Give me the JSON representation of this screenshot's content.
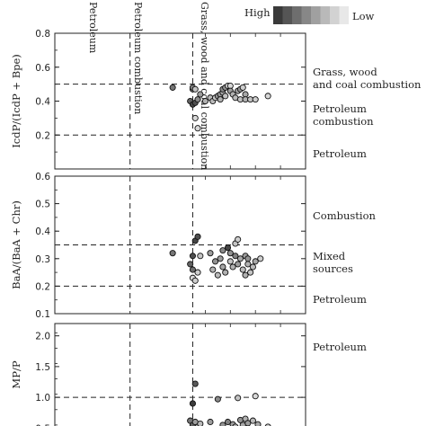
{
  "chart_data": [
    {
      "type": "scatter",
      "ylabel": "IcdP/(IcdP + Bpe)",
      "ylim": [
        0.0,
        0.8
      ],
      "yticks": [
        "0.2",
        "0.4",
        "0.6",
        "0.8"
      ],
      "thresholds": [
        0.2,
        0.5
      ],
      "zones": [
        "Grass, wood and coal combustion",
        "Petroleum combustion",
        "Petroleum"
      ],
      "points": [
        {
          "x": 0.55,
          "y": 0.47,
          "shade": 0.45
        },
        {
          "x": 0.55,
          "y": 0.48,
          "shade": 0.45
        },
        {
          "x": 0.54,
          "y": 0.4,
          "shade": 0.3
        },
        {
          "x": 0.55,
          "y": 0.38,
          "shade": 0.15
        },
        {
          "x": 0.56,
          "y": 0.39,
          "shade": 0.2
        },
        {
          "x": 0.56,
          "y": 0.47,
          "shade": 0.8
        },
        {
          "x": 0.57,
          "y": 0.41,
          "shade": 0.5
        },
        {
          "x": 0.56,
          "y": 0.3,
          "shade": 0.9
        },
        {
          "x": 0.57,
          "y": 0.24,
          "shade": 0.9
        },
        {
          "x": 0.47,
          "y": 0.48,
          "shade": 0.4
        },
        {
          "x": 0.58,
          "y": 0.44,
          "shade": 0.6
        },
        {
          "x": 0.6,
          "y": 0.4,
          "shade": 0.7
        },
        {
          "x": 0.62,
          "y": 0.42,
          "shade": 0.75
        },
        {
          "x": 0.63,
          "y": 0.4,
          "shade": 0.75
        },
        {
          "x": 0.64,
          "y": 0.42,
          "shade": 0.8
        },
        {
          "x": 0.65,
          "y": 0.43,
          "shade": 0.55
        },
        {
          "x": 0.66,
          "y": 0.44,
          "shade": 0.6
        },
        {
          "x": 0.66,
          "y": 0.41,
          "shade": 0.7
        },
        {
          "x": 0.67,
          "y": 0.45,
          "shade": 0.65
        },
        {
          "x": 0.67,
          "y": 0.47,
          "shade": 0.5
        },
        {
          "x": 0.68,
          "y": 0.48,
          "shade": 0.55
        },
        {
          "x": 0.68,
          "y": 0.43,
          "shade": 0.8
        },
        {
          "x": 0.69,
          "y": 0.49,
          "shade": 0.85
        },
        {
          "x": 0.7,
          "y": 0.49,
          "shade": 0.9
        },
        {
          "x": 0.7,
          "y": 0.46,
          "shade": 0.6
        },
        {
          "x": 0.71,
          "y": 0.44,
          "shade": 0.7
        },
        {
          "x": 0.72,
          "y": 0.42,
          "shade": 0.75
        },
        {
          "x": 0.73,
          "y": 0.46,
          "shade": 0.6
        },
        {
          "x": 0.74,
          "y": 0.47,
          "shade": 0.55
        },
        {
          "x": 0.74,
          "y": 0.41,
          "shade": 0.8
        },
        {
          "x": 0.75,
          "y": 0.48,
          "shade": 0.85
        },
        {
          "x": 0.76,
          "y": 0.44,
          "shade": 0.65
        },
        {
          "x": 0.76,
          "y": 0.41,
          "shade": 0.7
        },
        {
          "x": 0.78,
          "y": 0.41,
          "shade": 0.8
        },
        {
          "x": 0.8,
          "y": 0.41,
          "shade": 0.85
        },
        {
          "x": 0.85,
          "y": 0.43,
          "shade": 0.9
        }
      ]
    },
    {
      "type": "scatter",
      "ylabel": "BaA/(BaA + Chr)",
      "ylim": [
        0.1,
        0.6
      ],
      "yticks": [
        "0.1",
        "0.2",
        "0.3",
        "0.4",
        "0.5",
        "0.6"
      ],
      "thresholds": [
        0.2,
        0.35
      ],
      "zones": [
        "Combustion",
        "Mixed sources",
        "Petroleum"
      ],
      "points": [
        {
          "x": 0.47,
          "y": 0.32,
          "shade": 0.4
        },
        {
          "x": 0.54,
          "y": 0.28,
          "shade": 0.3
        },
        {
          "x": 0.55,
          "y": 0.26,
          "shade": 0.35
        },
        {
          "x": 0.55,
          "y": 0.31,
          "shade": 0.2
        },
        {
          "x": 0.56,
          "y": 0.365,
          "shade": 0.15
        },
        {
          "x": 0.57,
          "y": 0.38,
          "shade": 0.2
        },
        {
          "x": 0.55,
          "y": 0.23,
          "shade": 0.9
        },
        {
          "x": 0.56,
          "y": 0.22,
          "shade": 0.85
        },
        {
          "x": 0.57,
          "y": 0.25,
          "shade": 0.85
        },
        {
          "x": 0.58,
          "y": 0.31,
          "shade": 0.8
        },
        {
          "x": 0.62,
          "y": 0.32,
          "shade": 0.6
        },
        {
          "x": 0.63,
          "y": 0.26,
          "shade": 0.7
        },
        {
          "x": 0.64,
          "y": 0.29,
          "shade": 0.55
        },
        {
          "x": 0.65,
          "y": 0.24,
          "shade": 0.75
        },
        {
          "x": 0.66,
          "y": 0.3,
          "shade": 0.6
        },
        {
          "x": 0.67,
          "y": 0.27,
          "shade": 0.65
        },
        {
          "x": 0.67,
          "y": 0.33,
          "shade": 0.5
        },
        {
          "x": 0.68,
          "y": 0.25,
          "shade": 0.7
        },
        {
          "x": 0.69,
          "y": 0.34,
          "shade": 0.15
        },
        {
          "x": 0.7,
          "y": 0.29,
          "shade": 0.8
        },
        {
          "x": 0.7,
          "y": 0.32,
          "shade": 0.55
        },
        {
          "x": 0.71,
          "y": 0.27,
          "shade": 0.7
        },
        {
          "x": 0.72,
          "y": 0.31,
          "shade": 0.45
        },
        {
          "x": 0.72,
          "y": 0.355,
          "shade": 0.8
        },
        {
          "x": 0.73,
          "y": 0.28,
          "shade": 0.6
        },
        {
          "x": 0.73,
          "y": 0.37,
          "shade": 0.85
        },
        {
          "x": 0.74,
          "y": 0.3,
          "shade": 0.65
        },
        {
          "x": 0.75,
          "y": 0.26,
          "shade": 0.75
        },
        {
          "x": 0.76,
          "y": 0.31,
          "shade": 0.6
        },
        {
          "x": 0.76,
          "y": 0.24,
          "shade": 0.7
        },
        {
          "x": 0.77,
          "y": 0.3,
          "shade": 0.55
        },
        {
          "x": 0.77,
          "y": 0.28,
          "shade": 0.7
        },
        {
          "x": 0.78,
          "y": 0.25,
          "shade": 0.8
        },
        {
          "x": 0.79,
          "y": 0.27,
          "shade": 0.75
        },
        {
          "x": 0.8,
          "y": 0.29,
          "shade": 0.65
        },
        {
          "x": 0.82,
          "y": 0.3,
          "shade": 0.85
        }
      ]
    },
    {
      "type": "scatter",
      "ylabel": "MP/P",
      "ylim": [
        0.3,
        2.2
      ],
      "yticks": [
        "0.5",
        "1.0",
        "1.5",
        "2.0"
      ],
      "thresholds": [
        1.0
      ],
      "zones": [
        "Petroleum"
      ],
      "points": [
        {
          "x": 0.54,
          "y": 0.62,
          "shade": 0.4
        },
        {
          "x": 0.55,
          "y": 0.55,
          "shade": 0.3
        },
        {
          "x": 0.55,
          "y": 0.9,
          "shade": 0.1
        },
        {
          "x": 0.56,
          "y": 1.22,
          "shade": 0.25
        },
        {
          "x": 0.56,
          "y": 0.6,
          "shade": 0.6
        },
        {
          "x": 0.57,
          "y": 0.52,
          "shade": 0.7
        },
        {
          "x": 0.58,
          "y": 0.57,
          "shade": 0.75
        },
        {
          "x": 0.62,
          "y": 0.6,
          "shade": 0.6
        },
        {
          "x": 0.64,
          "y": 0.5,
          "shade": 0.7
        },
        {
          "x": 0.65,
          "y": 0.97,
          "shade": 0.5
        },
        {
          "x": 0.66,
          "y": 0.45,
          "shade": 0.8
        },
        {
          "x": 0.67,
          "y": 0.55,
          "shade": 0.55
        },
        {
          "x": 0.68,
          "y": 0.5,
          "shade": 0.65
        },
        {
          "x": 0.69,
          "y": 0.6,
          "shade": 0.45
        },
        {
          "x": 0.7,
          "y": 0.46,
          "shade": 0.7
        },
        {
          "x": 0.71,
          "y": 0.56,
          "shade": 0.6
        },
        {
          "x": 0.72,
          "y": 0.52,
          "shade": 0.75
        },
        {
          "x": 0.73,
          "y": 0.99,
          "shade": 0.8
        },
        {
          "x": 0.74,
          "y": 0.63,
          "shade": 0.55
        },
        {
          "x": 0.75,
          "y": 0.55,
          "shade": 0.65
        },
        {
          "x": 0.76,
          "y": 0.65,
          "shade": 0.7
        },
        {
          "x": 0.77,
          "y": 0.58,
          "shade": 0.6
        },
        {
          "x": 0.78,
          "y": 0.48,
          "shade": 0.8
        },
        {
          "x": 0.79,
          "y": 0.62,
          "shade": 0.75
        },
        {
          "x": 0.8,
          "y": 1.02,
          "shade": 0.9
        },
        {
          "x": 0.81,
          "y": 0.56,
          "shade": 0.65
        },
        {
          "x": 0.82,
          "y": 0.5,
          "shade": 0.8
        },
        {
          "x": 0.85,
          "y": 0.52,
          "shade": 0.85
        }
      ]
    }
  ],
  "top_labels": [
    "Petroleum",
    "Petroleum combustion",
    "Grass, wood and coal combustion"
  ],
  "legend": {
    "high": "High",
    "low": "Low",
    "shades": [
      "#3a3a3a",
      "#555555",
      "#6e6e6e",
      "#878787",
      "#a0a0a0",
      "#b9b9b9",
      "#d2d2d2",
      "#e8e8e8"
    ]
  }
}
